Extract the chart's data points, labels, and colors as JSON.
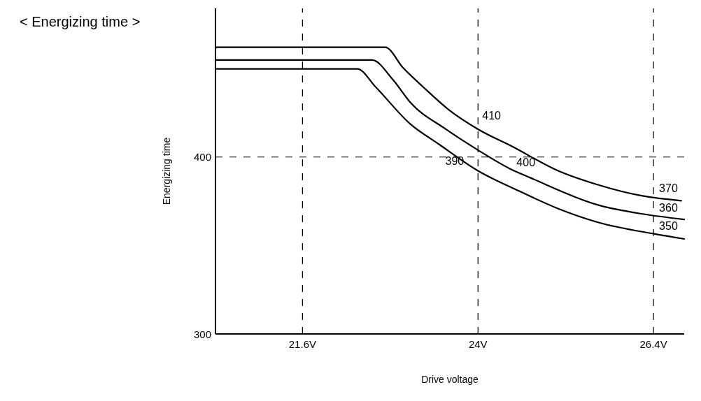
{
  "chart_data": {
    "type": "line",
    "title": "< Energizing time >",
    "xlabel": "Drive voltage",
    "ylabel": "Energizing time",
    "xlim": [
      20.41,
      26.82
    ],
    "ylim": [
      300,
      484
    ],
    "xticks": [
      {
        "value": 21.6,
        "label": "21.6V"
      },
      {
        "value": 24,
        "label": "24V"
      },
      {
        "value": 26.4,
        "label": "26.4V"
      }
    ],
    "yticks": [
      300,
      400
    ],
    "grid": true,
    "line_style": "solid",
    "series": [
      {
        "color": "#000000",
        "x": [
          20.41,
          22.73,
          22.98,
          23.26,
          23.6,
          24.0,
          24.47,
          25.08,
          25.64,
          26.25,
          26.78
        ],
        "values": [
          462,
          462,
          450.2,
          439.2,
          426.7,
          415.7,
          405.9,
          392.5,
          384.3,
          378,
          375.3
        ]
      },
      {
        "color": "#000000",
        "x": [
          20.41,
          22.55,
          22.84,
          23.08,
          23.55,
          24.0,
          24.44,
          24.72,
          25.64,
          26.25,
          26.82
        ],
        "values": [
          454.8,
          454.8,
          443.5,
          430.6,
          416,
          403.9,
          393.3,
          388.2,
          372.9,
          367.8,
          364.7
        ]
      },
      {
        "color": "#000000",
        "x": [
          20.41,
          22.35,
          22.6,
          23.07,
          23.47,
          24.0,
          24.56,
          25.11,
          25.64,
          26.42,
          26.82
        ],
        "values": [
          449.8,
          449.8,
          439.6,
          418.8,
          407.1,
          392.2,
          380.8,
          370.6,
          363.1,
          356.5,
          353.7
        ]
      }
    ],
    "annotations": [
      {
        "text": "410",
        "x": 24,
        "y": 415.7
      },
      {
        "text": "400",
        "x": 24.47,
        "y": 405.9
      },
      {
        "text": "390",
        "x": 24,
        "y": 392.2
      },
      {
        "text": "370",
        "x": 26.4,
        "y": 377
      },
      {
        "text": "360",
        "x": 26.4,
        "y": 366.8
      },
      {
        "text": "350",
        "x": 26.4,
        "y": 356.5
      }
    ]
  }
}
